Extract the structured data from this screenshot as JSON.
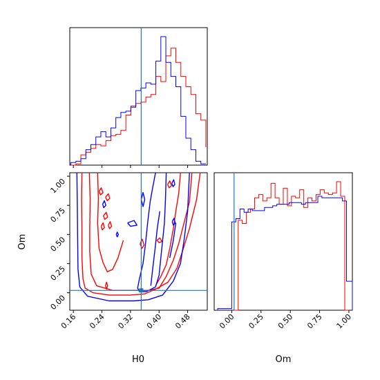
{
  "figure": {
    "kind": "corner-plot"
  },
  "colors": {
    "series_a": "#ff0000",
    "series_b": "#0000ff",
    "truth": "#1f77b4",
    "axis": "#000000"
  },
  "chart_data": [
    {
      "panel": "H0 marginal",
      "type": "step-histogram",
      "x_range": [
        0.15,
        0.535
      ],
      "truth_x": 0.35,
      "series": [
        {
          "color": "#ff0000",
          "edges": [
            0.153,
            0.167,
            0.181,
            0.195,
            0.209,
            0.223,
            0.237,
            0.251,
            0.265,
            0.279,
            0.293,
            0.307,
            0.321,
            0.335,
            0.349,
            0.363,
            0.377,
            0.391,
            0.405,
            0.419,
            0.433,
            0.447,
            0.461,
            0.475,
            0.489,
            0.503,
            0.517,
            0.531
          ],
          "values": [
            0,
            1,
            8,
            10,
            13,
            16,
            15,
            19,
            23,
            24,
            27,
            39,
            46,
            48,
            49,
            53,
            55,
            69,
            65,
            85,
            91,
            80,
            69,
            61,
            55,
            40,
            35,
            14
          ]
        },
        {
          "color": "#0000ff",
          "edges": [
            0.153,
            0.167,
            0.181,
            0.195,
            0.209,
            0.223,
            0.237,
            0.251,
            0.265,
            0.279,
            0.293,
            0.307,
            0.321,
            0.335,
            0.349,
            0.363,
            0.377,
            0.391,
            0.405,
            0.419,
            0.433,
            0.447,
            0.461,
            0.475,
            0.489,
            0.503,
            0.517,
            0.531
          ],
          "values": [
            2,
            3,
            5,
            12,
            16,
            22,
            26,
            22,
            29,
            37,
            41,
            42,
            45,
            58,
            60,
            64,
            63,
            81,
            100,
            80,
            69,
            61,
            38,
            21,
            12,
            3,
            1,
            1
          ]
        }
      ]
    },
    {
      "panel": "Om marginal",
      "type": "step-histogram",
      "x_range": [
        -0.15,
        1.03
      ],
      "truth_x": 0.02,
      "series": [
        {
          "color": "#ff0000",
          "edges": [
            0.02,
            0.055,
            0.09,
            0.125,
            0.16,
            0.195,
            0.23,
            0.265,
            0.3,
            0.335,
            0.37,
            0.405,
            0.44,
            0.475,
            0.51,
            0.545,
            0.58,
            0.615,
            0.65,
            0.685,
            0.72,
            0.755,
            0.79,
            0.825,
            0.86,
            0.895,
            0.93,
            0.965,
            1.0
          ],
          "values": [
            0,
            56,
            54,
            61,
            63,
            70,
            72,
            68,
            70,
            79,
            70,
            66,
            76,
            65,
            71,
            70,
            75,
            64,
            70,
            68,
            72,
            75,
            73,
            72,
            73,
            80,
            71,
            0
          ]
        },
        {
          "color": "#0000ff",
          "edges": [
            -0.12,
            0.0,
            0.035,
            0.07,
            0.105,
            0.14,
            0.175,
            0.21,
            0.245,
            0.28,
            0.315,
            0.35,
            0.385,
            0.42,
            0.455,
            0.49,
            0.525,
            0.56,
            0.595,
            0.63,
            0.665,
            0.7,
            0.735,
            0.77,
            0.805,
            0.84,
            0.875,
            0.91,
            0.945,
            0.98,
            1.03
          ],
          "values": [
            1,
            55,
            57,
            63,
            61,
            63,
            62,
            62,
            62,
            64,
            64,
            65,
            66,
            66,
            66,
            67,
            67,
            67,
            66,
            67,
            67,
            67,
            71,
            70,
            70,
            70,
            70,
            70,
            68,
            18
          ]
        }
      ]
    },
    {
      "panel": "H0 vs Om",
      "type": "contour",
      "x_range": [
        0.15,
        0.535
      ],
      "y_range": [
        -0.15,
        1.03
      ],
      "truth_x": 0.35,
      "truth_y": 0.02,
      "xlabel": "H0",
      "ylabel": "Om",
      "x_ticks": [
        "0.16",
        "0.24",
        "0.32",
        "0.40",
        "0.48"
      ],
      "y_ticks": [
        "0.00",
        "0.25",
        "0.50",
        "0.75",
        "1.00"
      ],
      "series": [
        {
          "color": "#ff0000",
          "contours": [
            [
              [
                0.184,
                1.03
              ],
              [
                0.183,
                0.8
              ],
              [
                0.184,
                0.55
              ],
              [
                0.184,
                0.3
              ],
              [
                0.187,
                0.12
              ],
              [
                0.193,
                0.04
              ],
              [
                0.215,
                0.0
              ],
              [
                0.26,
                -0.02
              ],
              [
                0.32,
                -0.02
              ],
              [
                0.36,
                -0.01
              ],
              [
                0.39,
                0.03
              ],
              [
                0.425,
                0.09
              ],
              [
                0.45,
                0.21
              ],
              [
                0.465,
                0.35
              ],
              [
                0.485,
                0.55
              ],
              [
                0.505,
                0.8
              ],
              [
                0.515,
                1.03
              ]
            ],
            [
              [
                0.205,
                1.03
              ],
              [
                0.207,
                0.8
              ],
              [
                0.206,
                0.55
              ],
              [
                0.206,
                0.35
              ],
              [
                0.21,
                0.16
              ],
              [
                0.225,
                0.06
              ],
              [
                0.27,
                0.02
              ],
              [
                0.33,
                0.02
              ],
              [
                0.37,
                0.02
              ],
              [
                0.4,
                0.04
              ],
              [
                0.42,
                0.14
              ],
              [
                0.44,
                0.28
              ],
              [
                0.455,
                0.42
              ],
              [
                0.47,
                0.6
              ],
              [
                0.485,
                0.78
              ],
              [
                0.492,
                1.03
              ]
            ],
            [
              [
                0.228,
                1.03
              ],
              [
                0.23,
                0.8
              ],
              [
                0.228,
                0.6
              ],
              [
                0.232,
                0.38
              ],
              [
                0.243,
                0.26
              ],
              [
                0.255,
                0.18
              ],
              [
                0.27,
                0.2
              ],
              [
                0.285,
                0.3
              ],
              [
                0.3,
                0.45
              ]
            ],
            [
              [
                0.39,
                0.06
              ],
              [
                0.405,
                0.14
              ],
              [
                0.42,
                0.24
              ],
              [
                0.43,
                0.38
              ],
              [
                0.44,
                0.55
              ],
              [
                0.448,
                0.72
              ],
              [
                0.455,
                0.85
              ],
              [
                0.46,
                1.03
              ]
            ],
            [
              [
                0.232,
                0.87
              ],
              [
                0.238,
                0.9
              ],
              [
                0.243,
                0.86
              ],
              [
                0.236,
                0.84
              ],
              [
                0.232,
                0.87
              ]
            ],
            [
              [
                0.25,
                0.82
              ],
              [
                0.258,
                0.85
              ],
              [
                0.262,
                0.81
              ],
              [
                0.255,
                0.79
              ],
              [
                0.25,
                0.82
              ]
            ],
            [
              [
                0.244,
                0.66
              ],
              [
                0.252,
                0.69
              ],
              [
                0.256,
                0.65
              ],
              [
                0.248,
                0.63
              ],
              [
                0.244,
                0.66
              ]
            ],
            [
              [
                0.238,
                0.57
              ],
              [
                0.243,
                0.6
              ],
              [
                0.247,
                0.56
              ],
              [
                0.241,
                0.54
              ],
              [
                0.238,
                0.57
              ]
            ],
            [
              [
                0.258,
                0.58
              ],
              [
                0.263,
                0.61
              ],
              [
                0.267,
                0.57
              ],
              [
                0.261,
                0.55
              ],
              [
                0.258,
                0.58
              ]
            ],
            [
              [
                0.347,
                0.42
              ],
              [
                0.353,
                0.46
              ],
              [
                0.358,
                0.41
              ],
              [
                0.352,
                0.38
              ],
              [
                0.347,
                0.42
              ]
            ],
            [
              [
                0.394,
                0.45
              ],
              [
                0.402,
                0.47
              ],
              [
                0.408,
                0.44
              ],
              [
                0.4,
                0.43
              ],
              [
                0.394,
                0.45
              ]
            ],
            [
              [
                0.424,
                0.93
              ],
              [
                0.43,
                0.96
              ],
              [
                0.435,
                0.92
              ],
              [
                0.428,
                0.9
              ],
              [
                0.424,
                0.93
              ]
            ],
            [
              [
                0.25,
                0.06
              ],
              [
                0.253,
                0.09
              ],
              [
                0.256,
                0.06
              ],
              [
                0.253,
                0.03
              ],
              [
                0.25,
                0.06
              ]
            ]
          ]
        },
        {
          "color": "#0000ff",
          "contours": [
            [
              [
                0.17,
                1.03
              ],
              [
                0.171,
                0.75
              ],
              [
                0.172,
                0.45
              ],
              [
                0.173,
                0.2
              ],
              [
                0.178,
                0.05
              ],
              [
                0.2,
                -0.03
              ],
              [
                0.26,
                -0.07
              ],
              [
                0.33,
                -0.07
              ],
              [
                0.37,
                -0.06
              ],
              [
                0.41,
                -0.02
              ],
              [
                0.44,
                0.1
              ],
              [
                0.46,
                0.25
              ],
              [
                0.47,
                0.45
              ],
              [
                0.48,
                0.7
              ],
              [
                0.485,
                1.03
              ]
            ],
            [
              [
                0.42,
                1.03
              ],
              [
                0.418,
                0.8
              ],
              [
                0.415,
                0.6
              ],
              [
                0.41,
                0.45
              ],
              [
                0.405,
                0.3
              ],
              [
                0.4,
                0.15
              ],
              [
                0.39,
                0.05
              ],
              [
                0.365,
                0.01
              ],
              [
                0.345,
                0.01
              ],
              [
                0.34,
                0.04
              ],
              [
                0.345,
                0.12
              ],
              [
                0.355,
                0.25
              ],
              [
                0.362,
                0.42
              ],
              [
                0.368,
                0.6
              ],
              [
                0.375,
                0.78
              ],
              [
                0.382,
                0.9
              ],
              [
                0.39,
                1.03
              ]
            ],
            [
              [
                0.377,
                0.06
              ],
              [
                0.382,
                0.2
              ],
              [
                0.389,
                0.38
              ],
              [
                0.395,
                0.55
              ],
              [
                0.402,
                0.7
              ]
            ],
            [
              [
                0.43,
                0.3
              ],
              [
                0.44,
                0.45
              ],
              [
                0.447,
                0.6
              ]
            ],
            [
              [
                0.312,
                0.6
              ],
              [
                0.33,
                0.62
              ],
              [
                0.338,
                0.58
              ],
              [
                0.32,
                0.57
              ],
              [
                0.312,
                0.6
              ]
            ],
            [
              [
                0.35,
                0.8
              ],
              [
                0.355,
                0.86
              ],
              [
                0.36,
                0.8
              ],
              [
                0.355,
                0.74
              ],
              [
                0.35,
                0.8
              ]
            ],
            [
              [
                0.242,
                0.76
              ],
              [
                0.247,
                0.79
              ],
              [
                0.251,
                0.75
              ],
              [
                0.245,
                0.73
              ],
              [
                0.242,
                0.76
              ]
            ],
            [
              [
                0.28,
                0.5
              ],
              [
                0.283,
                0.52
              ],
              [
                0.286,
                0.5
              ],
              [
                0.283,
                0.48
              ],
              [
                0.28,
                0.5
              ]
            ],
            [
              [
                0.437,
                0.61
              ],
              [
                0.442,
                0.64
              ],
              [
                0.445,
                0.6
              ],
              [
                0.44,
                0.58
              ],
              [
                0.437,
                0.61
              ]
            ],
            [
              [
                0.436,
                0.94
              ],
              [
                0.441,
                0.97
              ],
              [
                0.444,
                0.93
              ],
              [
                0.439,
                0.91
              ],
              [
                0.436,
                0.94
              ]
            ]
          ]
        }
      ]
    }
  ]
}
